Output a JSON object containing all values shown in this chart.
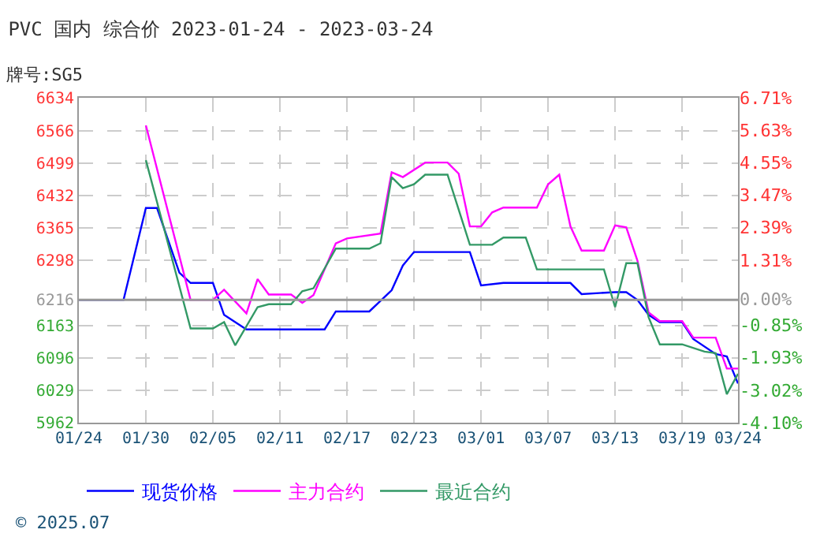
{
  "chart_data": {
    "type": "line",
    "title": "PVC 国内 综合价 2023-01-24 - 2023-03-24",
    "subtitle": "牌号:SG5",
    "xlim": [
      "2023-01-24",
      "2023-03-24"
    ],
    "xticks": [
      {
        "value": "2023-01-24",
        "label": "01/24"
      },
      {
        "value": "2023-01-30",
        "label": "01/30"
      },
      {
        "value": "2023-02-05",
        "label": "02/05"
      },
      {
        "value": "2023-02-11",
        "label": "02/11"
      },
      {
        "value": "2023-02-17",
        "label": "02/17"
      },
      {
        "value": "2023-02-23",
        "label": "02/23"
      },
      {
        "value": "2023-03-01",
        "label": "03/01"
      },
      {
        "value": "2023-03-07",
        "label": "03/07"
      },
      {
        "value": "2023-03-13",
        "label": "03/13"
      },
      {
        "value": "2023-03-19",
        "label": "03/19"
      },
      {
        "value": "2023-03-24",
        "label": "03/24"
      }
    ],
    "ylim": [
      5962,
      6634
    ],
    "yticks": [
      5962,
      6029,
      6096,
      6163,
      6216,
      6298,
      6365,
      6432,
      6499,
      6566,
      6634
    ],
    "y2lim": [
      -4.1,
      6.71
    ],
    "y2ticks": [
      {
        "value": -4.1,
        "label": "-4.10%"
      },
      {
        "value": -3.02,
        "label": "-3.02%"
      },
      {
        "value": -1.93,
        "label": "-1.93%"
      },
      {
        "value": -0.85,
        "label": "-0.85%"
      },
      {
        "value": 0,
        "label": "0.00%"
      },
      {
        "value": 1.31,
        "label": "1.31%"
      },
      {
        "value": 2.39,
        "label": "2.39%"
      },
      {
        "value": 3.47,
        "label": "3.47%"
      },
      {
        "value": 4.55,
        "label": "4.55%"
      },
      {
        "value": 5.63,
        "label": "5.63%"
      },
      {
        "value": 6.71,
        "label": "6.71%"
      }
    ],
    "grid": true,
    "legend": "bottom",
    "line_style": "solid",
    "ref_lines": [
      {
        "axis": "y",
        "value": 6216,
        "label": null,
        "color": "#999999"
      }
    ],
    "annotations": [
      "© 2025.07"
    ],
    "series": [
      {
        "name": "现货价格",
        "color": "#0000ff",
        "x": [
          "2023-01-24",
          "2023-01-28",
          "2023-01-30",
          "2023-01-31",
          "2023-02-02",
          "2023-02-03",
          "2023-02-05",
          "2023-02-06",
          "2023-02-08",
          "2023-02-15",
          "2023-02-16",
          "2023-02-19",
          "2023-02-21",
          "2023-02-22",
          "2023-02-23",
          "2023-02-28",
          "2023-03-01",
          "2023-03-03",
          "2023-03-09",
          "2023-03-10",
          "2023-03-13",
          "2023-03-14",
          "2023-03-15",
          "2023-03-16",
          "2023-03-17",
          "2023-03-19",
          "2023-03-20",
          "2023-03-22",
          "2023-03-23",
          "2023-03-24"
        ],
        "values": [
          6216,
          6216,
          6406,
          6406,
          6272,
          6251,
          6251,
          6185,
          6155,
          6155,
          6192,
          6192,
          6236,
          6287,
          6315,
          6315,
          6246,
          6251,
          6251,
          6228,
          6232,
          6232,
          6216,
          6185,
          6170,
          6170,
          6135,
          6104,
          6099,
          6043
        ]
      },
      {
        "name": "主力合约",
        "color": "#ff00ff",
        "x": [
          "2023-01-30",
          "2023-02-03",
          "2023-02-05",
          "2023-02-06",
          "2023-02-08",
          "2023-02-09",
          "2023-02-10",
          "2023-02-12",
          "2023-02-13",
          "2023-02-14",
          "2023-02-16",
          "2023-02-17",
          "2023-02-20",
          "2023-02-21",
          "2023-02-22",
          "2023-02-24",
          "2023-02-26",
          "2023-02-27",
          "2023-02-28",
          "2023-03-01",
          "2023-03-02",
          "2023-03-03",
          "2023-03-06",
          "2023-03-07",
          "2023-03-08",
          "2023-03-09",
          "2023-03-10",
          "2023-03-12",
          "2023-03-13",
          "2023-03-14",
          "2023-03-15",
          "2023-03-16",
          "2023-03-17",
          "2023-03-19",
          "2023-03-20",
          "2023-03-22",
          "2023-03-23",
          "2023-03-24"
        ],
        "values": [
          6577,
          6216,
          6216,
          6237,
          6188,
          6259,
          6227,
          6227,
          6210,
          6226,
          6333,
          6343,
          6353,
          6480,
          6470,
          6500,
          6500,
          6477,
          6368,
          6368,
          6397,
          6407,
          6407,
          6455,
          6475,
          6368,
          6318,
          6318,
          6370,
          6366,
          6297,
          6190,
          6172,
          6172,
          6138,
          6138,
          6074,
          6074
        ]
      },
      {
        "name": "最近合约",
        "color": "#339966",
        "x": [
          "2023-01-30",
          "2023-02-03",
          "2023-02-05",
          "2023-02-06",
          "2023-02-07",
          "2023-02-09",
          "2023-02-10",
          "2023-02-12",
          "2023-02-13",
          "2023-02-14",
          "2023-02-16",
          "2023-02-19",
          "2023-02-20",
          "2023-02-21",
          "2023-02-22",
          "2023-02-23",
          "2023-02-24",
          "2023-02-26",
          "2023-02-28",
          "2023-03-02",
          "2023-03-03",
          "2023-03-05",
          "2023-03-06",
          "2023-03-12",
          "2023-03-13",
          "2023-03-14",
          "2023-03-15",
          "2023-03-16",
          "2023-03-17",
          "2023-03-19",
          "2023-03-21",
          "2023-03-22",
          "2023-03-23",
          "2023-03-24"
        ],
        "values": [
          6505,
          6157,
          6157,
          6170,
          6122,
          6201,
          6207,
          6207,
          6234,
          6240,
          6322,
          6322,
          6333,
          6470,
          6447,
          6455,
          6475,
          6475,
          6330,
          6330,
          6345,
          6345,
          6279,
          6279,
          6201,
          6292,
          6292,
          6180,
          6124,
          6124,
          6109,
          6106,
          6021,
          6063
        ]
      }
    ]
  }
}
